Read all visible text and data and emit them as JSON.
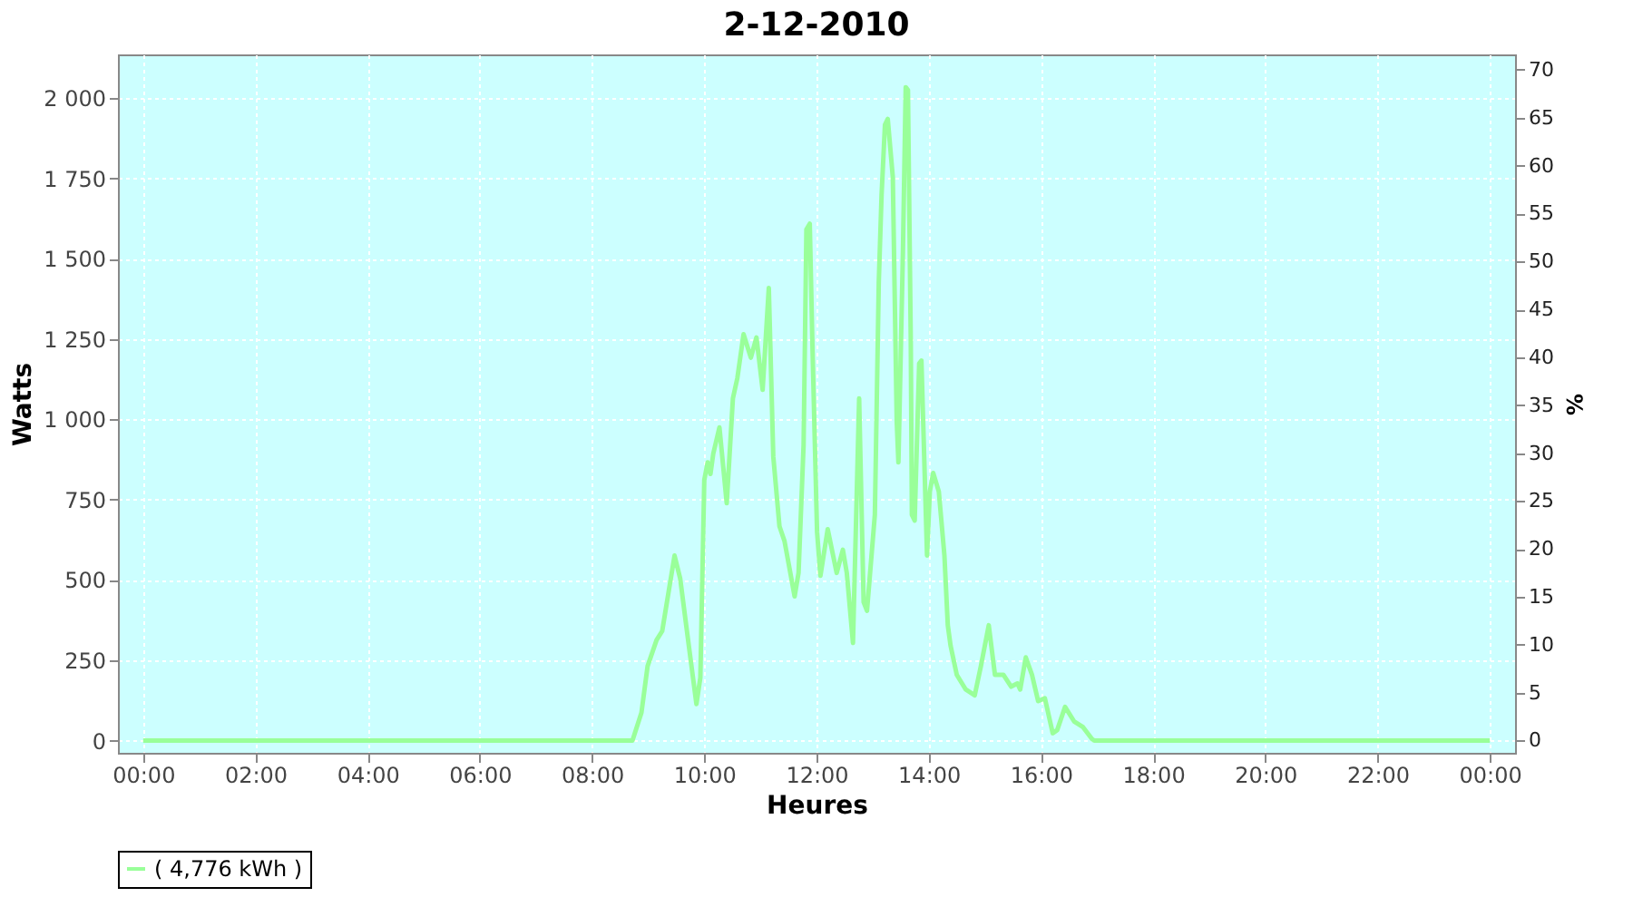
{
  "chart_data": {
    "type": "line",
    "title": "2-12-2010",
    "xlabel": "Heures",
    "ylabel": "Watts",
    "y2label": "%",
    "series": [
      {
        "name": "( 4,776 kWh )",
        "color": "#99ff99",
        "x": [
          0,
          8.72,
          8.88,
          8.99,
          9.15,
          9.25,
          9.47,
          9.57,
          9.73,
          9.86,
          9.93,
          10.0,
          10.06,
          10.11,
          10.16,
          10.27,
          10.4,
          10.51,
          10.59,
          10.7,
          10.83,
          10.93,
          11.04,
          11.15,
          11.23,
          11.34,
          11.43,
          11.61,
          11.68,
          11.77,
          11.82,
          11.88,
          11.93,
          12.01,
          12.07,
          12.2,
          12.36,
          12.47,
          12.54,
          12.65,
          12.76,
          12.84,
          12.9,
          13.04,
          13.11,
          13.16,
          13.22,
          13.27,
          13.36,
          13.43,
          13.46,
          13.54,
          13.59,
          13.63,
          13.68,
          13.7,
          13.75,
          13.83,
          13.87,
          13.97,
          14.02,
          14.08,
          14.18,
          14.28,
          14.34,
          14.39,
          14.5,
          14.66,
          14.82,
          14.93,
          15.07,
          15.18,
          15.33,
          15.47,
          15.58,
          15.63,
          15.73,
          15.84,
          15.95,
          16.07,
          16.21,
          16.29,
          16.43,
          16.59,
          16.75,
          16.91,
          16.95,
          24
        ],
        "values": [
          0,
          0,
          87,
          232,
          313,
          341,
          576,
          505,
          288,
          114,
          196,
          811,
          866,
          830,
          893,
          975,
          739,
          1065,
          1129,
          1265,
          1192,
          1255,
          1092,
          1409,
          884,
          667,
          621,
          449,
          522,
          920,
          1591,
          1609,
          1212,
          649,
          513,
          658,
          522,
          594,
          522,
          304,
          1065,
          431,
          404,
          703,
          1428,
          1699,
          1917,
          1935,
          1754,
          993,
          866,
          1518,
          2034,
          2025,
          1246,
          703,
          685,
          1174,
          1183,
          576,
          775,
          833,
          775,
          576,
          359,
          295,
          205,
          159,
          141,
          232,
          359,
          205,
          205,
          168,
          178,
          159,
          259,
          205,
          123,
          132,
          23,
          33,
          105,
          60,
          42,
          5,
          0,
          0
        ]
      }
    ],
    "xlim": [
      -0.45,
      24.45
    ],
    "xticks": [
      {
        "value": 0,
        "label": "00:00"
      },
      {
        "value": 2,
        "label": "02:00"
      },
      {
        "value": 4,
        "label": "04:00"
      },
      {
        "value": 6,
        "label": "06:00"
      },
      {
        "value": 8,
        "label": "08:00"
      },
      {
        "value": 10,
        "label": "10:00"
      },
      {
        "value": 12,
        "label": "12:00"
      },
      {
        "value": 14,
        "label": "14:00"
      },
      {
        "value": 16,
        "label": "16:00"
      },
      {
        "value": 18,
        "label": "18:00"
      },
      {
        "value": 20,
        "label": "20:00"
      },
      {
        "value": 22,
        "label": "22:00"
      },
      {
        "value": 24,
        "label": "00:00"
      }
    ],
    "ylim": [
      -38,
      2136
    ],
    "yticks": [
      0,
      250,
      500,
      750,
      {
        "value": 1000,
        "label": "1 000"
      },
      {
        "value": 1250,
        "label": "1 250"
      },
      {
        "value": 1500,
        "label": "1 500"
      },
      {
        "value": 1750,
        "label": "1 750"
      },
      {
        "value": 2000,
        "label": "2 000"
      }
    ],
    "y2lim": [
      -1.28,
      71.6
    ],
    "y2ticks": [
      0,
      5,
      10,
      15,
      20,
      25,
      30,
      35,
      40,
      45,
      50,
      55,
      60,
      65,
      70
    ],
    "grid": true,
    "legend": "bottom",
    "marker": "none",
    "line_style": "solid"
  }
}
